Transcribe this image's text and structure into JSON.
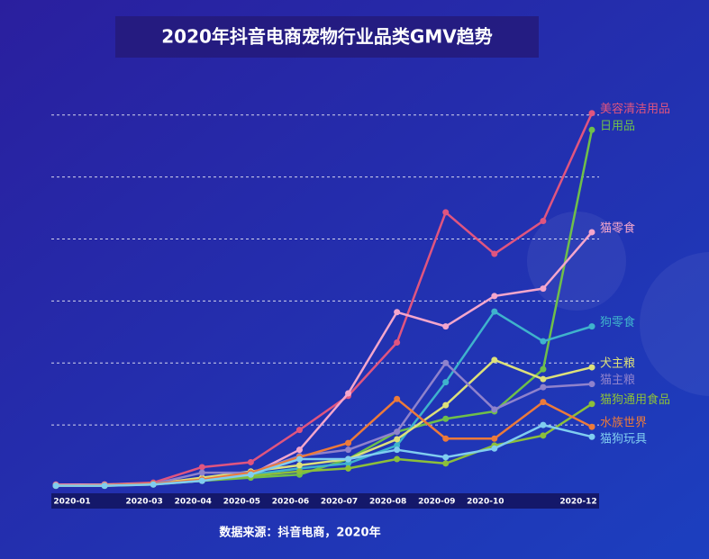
{
  "chart_data": {
    "type": "line",
    "title": "2020年抖音电商宠物行业品类GMV趋势",
    "source": "数据来源：抖音电商，2020年",
    "categories": [
      "2020-01",
      null,
      "2020-03",
      "2020-04",
      "2020-05",
      "2020-06",
      "2020-07",
      "2020-08",
      "2020-09",
      "2020-10",
      null,
      "2020-12"
    ],
    "ylim": [
      0,
      6.2
    ],
    "yticks": [
      1,
      2,
      3,
      4,
      5,
      6
    ],
    "grid": true,
    "series": [
      {
        "name": "美容清洁用品",
        "color": "#e0557f",
        "values": [
          0.04,
          0.04,
          0.07,
          0.32,
          0.4,
          0.92,
          1.47,
          2.33,
          4.43,
          3.76,
          4.29,
          6.03
        ]
      },
      {
        "name": "日用品",
        "color": "#6fbf4a",
        "values": [
          0.03,
          0.03,
          0.05,
          0.1,
          0.15,
          0.2,
          0.45,
          0.89,
          1.1,
          1.22,
          1.9,
          5.76
        ]
      },
      {
        "name": "猫零食",
        "color": "#f4a6cc",
        "values": [
          0.03,
          0.04,
          0.05,
          0.1,
          0.2,
          0.6,
          1.51,
          2.82,
          2.59,
          3.08,
          3.2,
          4.11
        ]
      },
      {
        "name": "狗零食",
        "color": "#3fb3cc",
        "values": [
          0.02,
          0.02,
          0.05,
          0.1,
          0.2,
          0.3,
          0.38,
          0.67,
          1.69,
          2.83,
          2.35,
          2.59
        ]
      },
      {
        "name": "犬主粮",
        "color": "#dde07a",
        "values": [
          0.02,
          0.02,
          0.05,
          0.15,
          0.25,
          0.35,
          0.45,
          0.77,
          1.32,
          2.05,
          1.74,
          1.93
        ]
      },
      {
        "name": "猫主粮",
        "color": "#8f82cc",
        "values": [
          0.02,
          0.03,
          0.05,
          0.23,
          0.23,
          0.5,
          0.6,
          0.89,
          2.0,
          1.25,
          1.61,
          1.66
        ]
      },
      {
        "name": "猫狗通用食品",
        "color": "#8cbf3a",
        "values": [
          0.02,
          0.02,
          0.04,
          0.1,
          0.18,
          0.25,
          0.3,
          0.45,
          0.38,
          0.67,
          0.83,
          1.34
        ]
      },
      {
        "name": "水族世界",
        "color": "#ec7a3a",
        "values": [
          0.02,
          0.03,
          0.05,
          0.12,
          0.23,
          0.48,
          0.71,
          1.42,
          0.78,
          0.78,
          1.37,
          0.97
        ]
      },
      {
        "name": "猫狗玩具",
        "color": "#80cdf0",
        "values": [
          0.02,
          0.02,
          0.04,
          0.1,
          0.2,
          0.45,
          0.45,
          0.6,
          0.48,
          0.62,
          1.0,
          0.81
        ]
      }
    ]
  }
}
